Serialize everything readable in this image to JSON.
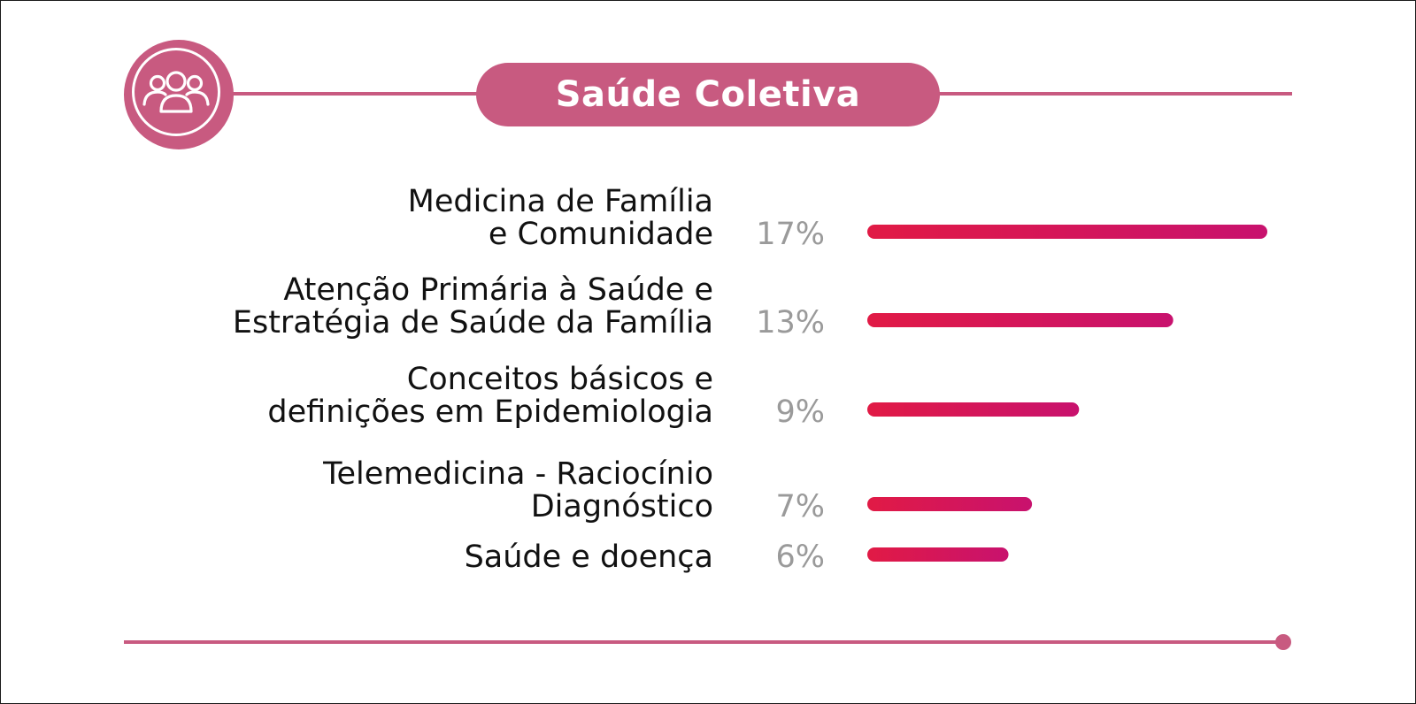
{
  "title": "Saúde Coletiva",
  "icon": "group-people-icon",
  "colors": {
    "accent": "#c85a80",
    "bar_start": "#e11a45",
    "bar_end": "#c8126e",
    "percent_text": "#9a9a9a",
    "label_text": "#111111"
  },
  "chart_data": {
    "type": "bar",
    "orientation": "horizontal",
    "title": "Saúde Coletiva",
    "categories": [
      [
        "Medicina de Família",
        "e Comunidade"
      ],
      [
        "Atenção Primária à Saúde e",
        "Estratégia de Saúde da Família"
      ],
      [
        "Conceitos básicos e",
        "definições em Epidemiologia"
      ],
      [
        "Telemedicina - Raciocínio",
        "Diagnóstico"
      ],
      [
        "Saúde e doença"
      ]
    ],
    "values": [
      17,
      13,
      9,
      7,
      6
    ],
    "value_labels": [
      "17%",
      "13%",
      "9%",
      "7%",
      "6%"
    ],
    "unit": "%",
    "xlim": [
      0,
      17
    ],
    "grid": false,
    "legend": "none"
  }
}
